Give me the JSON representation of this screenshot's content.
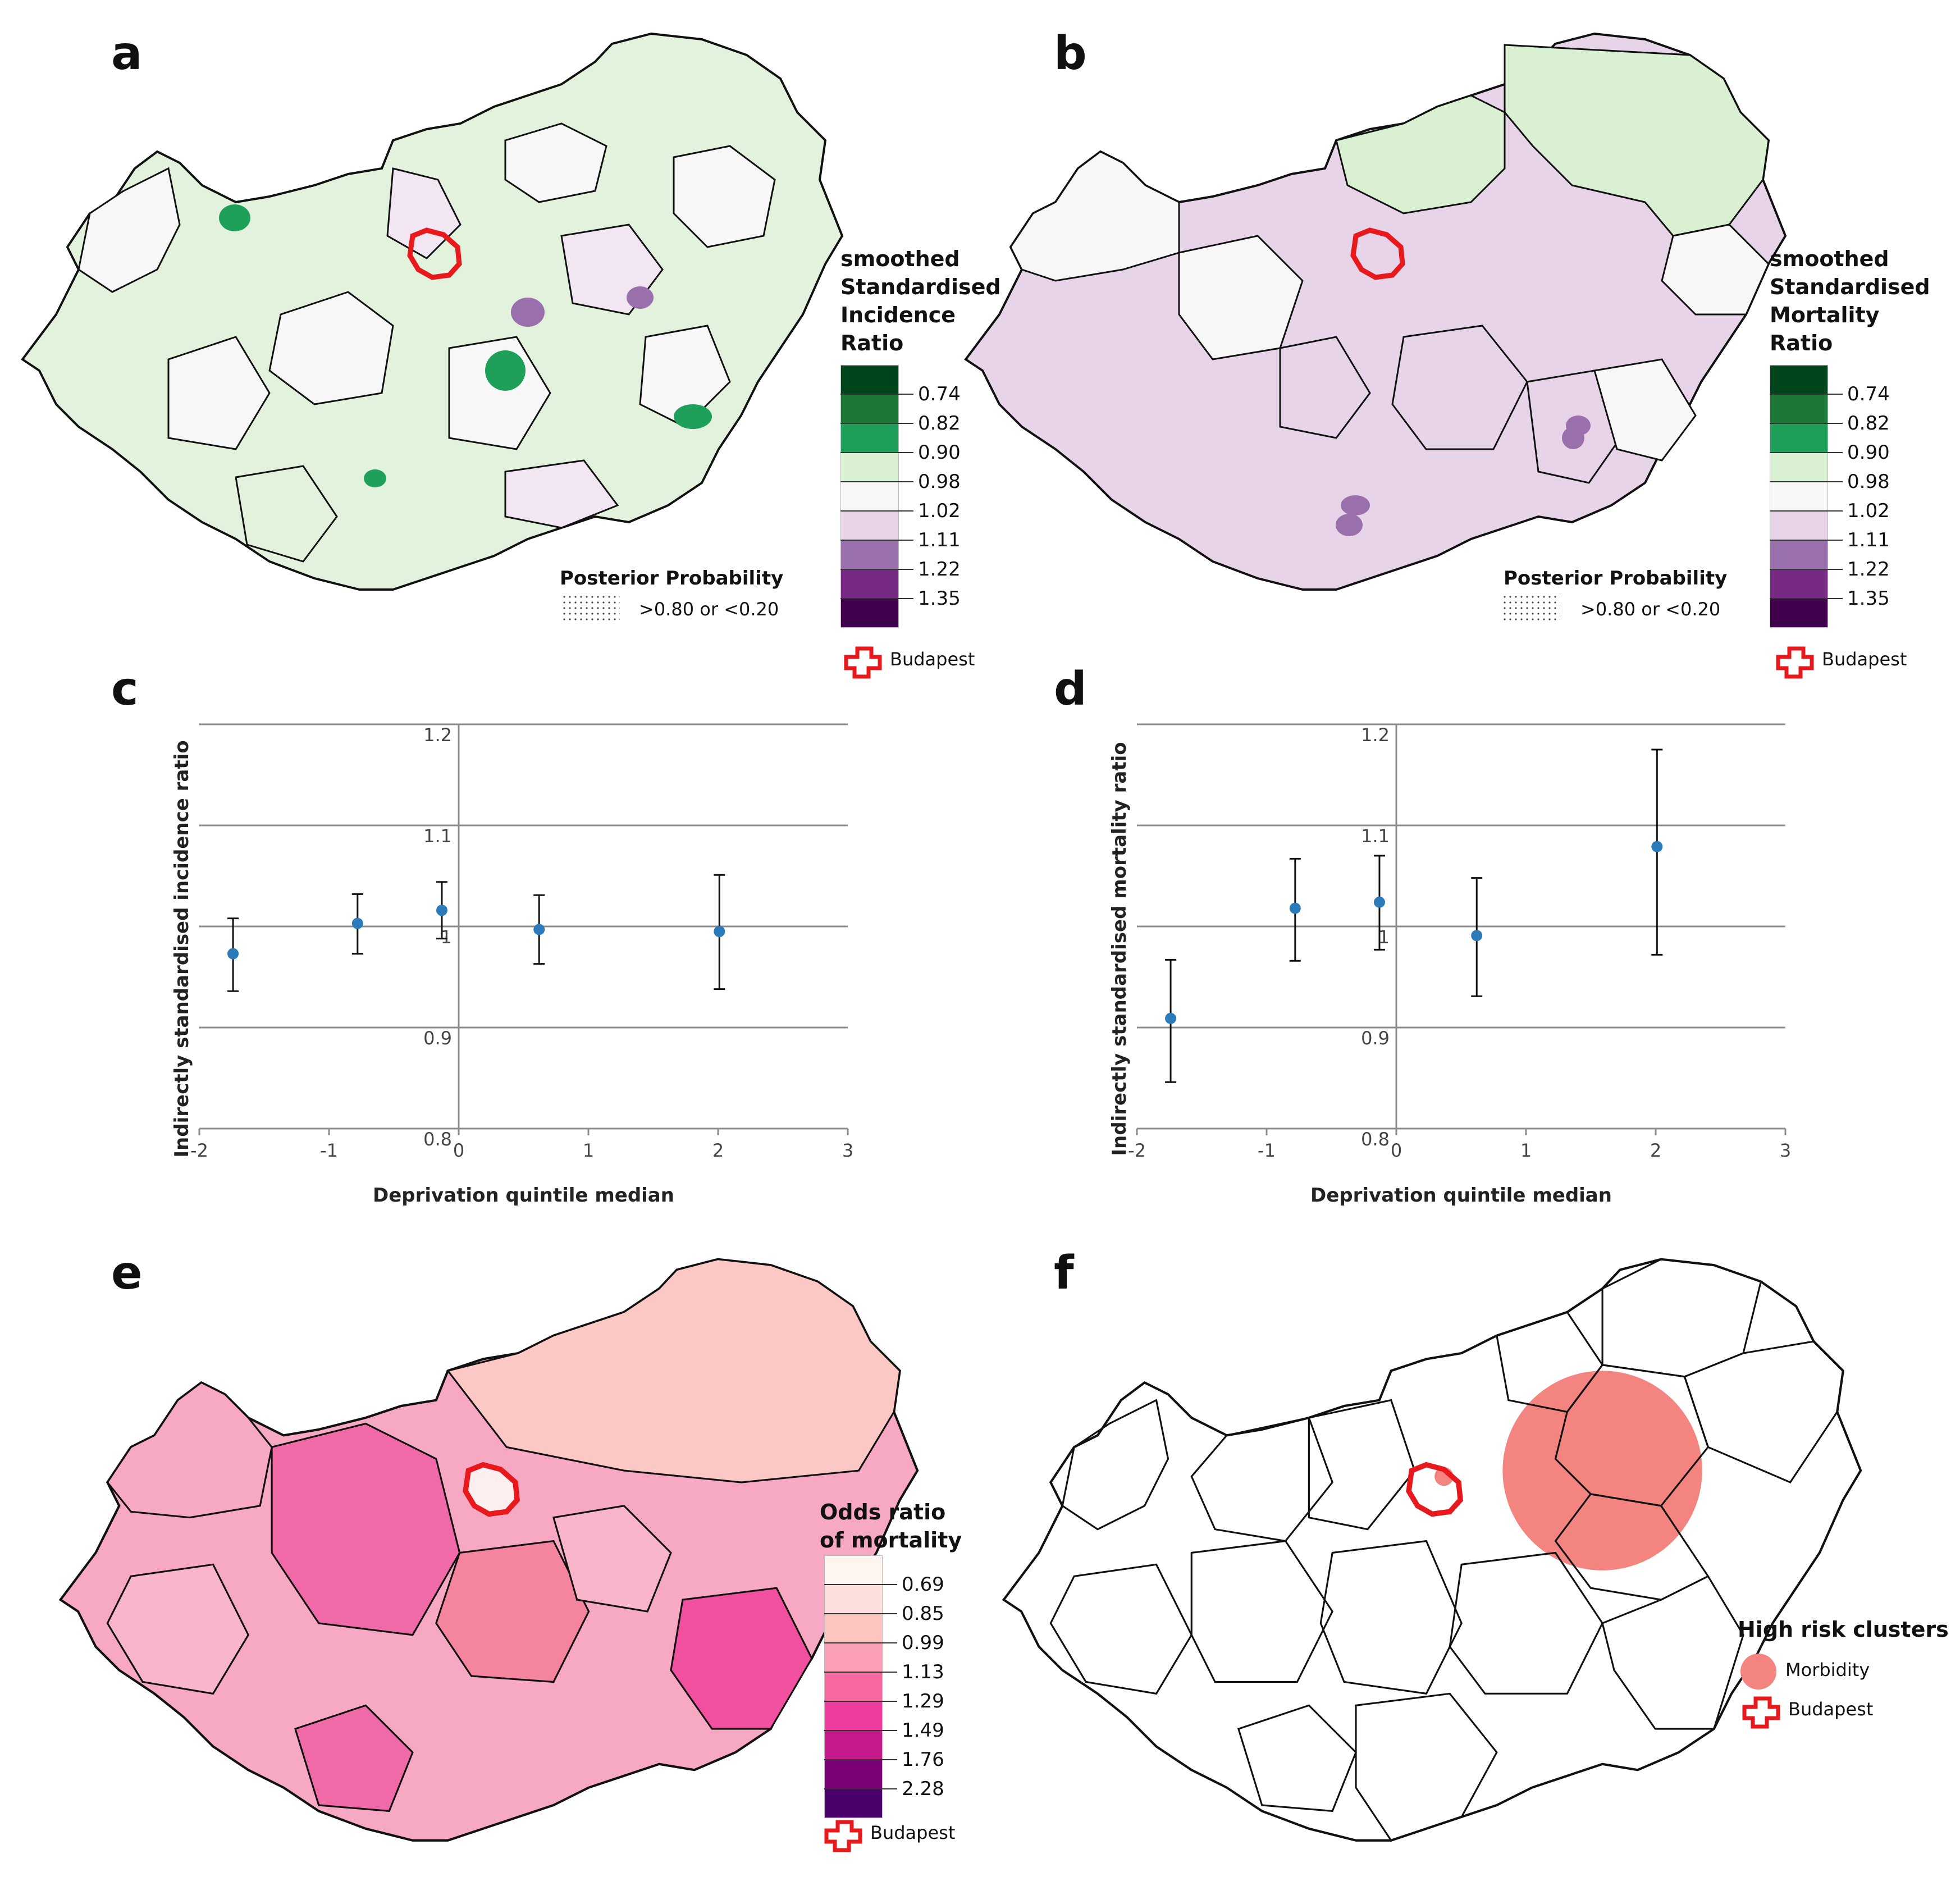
{
  "panels": {
    "a": {
      "letter": "a",
      "legend_title": [
        "smoothed",
        "Standardised",
        "Incidence",
        "Ratio"
      ],
      "legend_breaks": [
        "0.74",
        "0.82",
        "0.90",
        "0.98",
        "1.02",
        "1.11",
        "1.22",
        "1.35"
      ],
      "legend_colors": [
        "#00441b",
        "#1b7837",
        "#1fa05a",
        "#d9f0d3",
        "#f7f7f7",
        "#e7d4e8",
        "#9970ab",
        "#762a83",
        "#40004b"
      ],
      "posterior_title": "Posterior Probability",
      "posterior_label": ">0.80 or <0.20",
      "budapest_label": "Budapest"
    },
    "b": {
      "letter": "b",
      "legend_title": [
        "smoothed",
        "Standardised",
        "Mortality",
        "Ratio"
      ],
      "legend_breaks": [
        "0.74",
        "0.82",
        "0.90",
        "0.98",
        "1.02",
        "1.11",
        "1.22",
        "1.35"
      ],
      "legend_colors": [
        "#00441b",
        "#1b7837",
        "#1fa05a",
        "#d9f0d3",
        "#f7f7f7",
        "#e7d4e8",
        "#9970ab",
        "#762a83",
        "#40004b"
      ],
      "posterior_title": "Posterior Probability",
      "posterior_label": ">0.80 or <0.20",
      "budapest_label": "Budapest"
    },
    "e": {
      "letter": "e",
      "legend_title": [
        "Odds ratio",
        "of mortality"
      ],
      "legend_breaks": [
        "0.69",
        "0.85",
        "0.99",
        "1.13",
        "1.29",
        "1.49",
        "1.76",
        "2.28"
      ],
      "legend_colors": [
        "#fff5f0",
        "#fde0dd",
        "#fcc5c0",
        "#fa9fb5",
        "#f768a1",
        "#ee3d9f",
        "#c51b8a",
        "#7a0177",
        "#49006a"
      ],
      "budapest_label": "Budapest"
    },
    "f": {
      "letter": "f",
      "legend_title": "High risk clusters",
      "cluster_label": "Morbidity",
      "cluster_color": "#f4847f",
      "budapest_label": "Budapest"
    }
  },
  "chart_data": [
    {
      "panel": "c",
      "type": "scatter",
      "title": "",
      "xlabel": "Deprivation quintile median",
      "ylabel": "Indirectly standardised incidence ratio",
      "xlim": [
        -2,
        3
      ],
      "ylim": [
        0.8,
        1.2
      ],
      "xticks": [
        "-2",
        "-1",
        "0",
        "1",
        "2",
        "3"
      ],
      "yticks": [
        "0.8",
        "0.9",
        "1",
        "1.1",
        "1.2"
      ],
      "x": [
        -1.74,
        -0.78,
        -0.13,
        0.62,
        2.01
      ],
      "y": [
        0.973,
        1.003,
        1.016,
        0.997,
        0.995
      ],
      "lower": [
        0.936,
        0.973,
        0.988,
        0.963,
        0.938
      ],
      "upper": [
        1.008,
        1.032,
        1.044,
        1.031,
        1.051
      ],
      "point_color": "#2b7bba"
    },
    {
      "panel": "d",
      "type": "scatter",
      "title": "",
      "xlabel": "Deprivation quintile median",
      "ylabel": "Indirectly standardised mortality ratio",
      "xlim": [
        -2,
        3
      ],
      "ylim": [
        0.8,
        1.2
      ],
      "xticks": [
        "-2",
        "-1",
        "0",
        "1",
        "2",
        "3"
      ],
      "yticks": [
        "0.8",
        "0.9",
        "1",
        "1.1",
        "1.2"
      ],
      "x": [
        -1.74,
        -0.78,
        -0.13,
        0.62,
        2.01
      ],
      "y": [
        0.909,
        1.018,
        1.024,
        0.991,
        1.079
      ],
      "lower": [
        0.846,
        0.966,
        0.977,
        0.931,
        0.972
      ],
      "upper": [
        0.967,
        1.067,
        1.07,
        1.048,
        1.175
      ],
      "point_color": "#2b7bba"
    }
  ]
}
